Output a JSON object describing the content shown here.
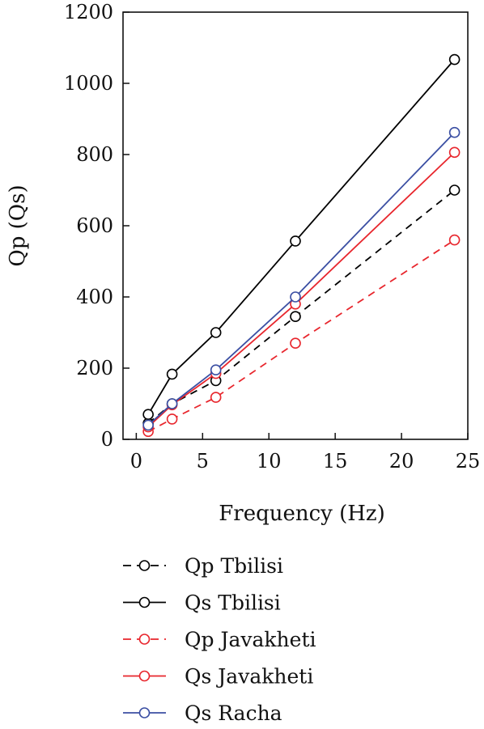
{
  "chart_data": {
    "type": "line",
    "xlabel": "Frequency (Hz)",
    "ylabel": "Qp (Qs)",
    "xlim": [
      -1,
      25
    ],
    "ylim": [
      0,
      1200
    ],
    "xticks": [
      0,
      5,
      10,
      15,
      20,
      25
    ],
    "yticks": [
      0,
      200,
      400,
      600,
      800,
      1000,
      1200
    ],
    "xtick_labels": [
      "0",
      "5",
      "10",
      "15",
      "20",
      "25"
    ],
    "ytick_labels": [
      "0",
      "200",
      "400",
      "600",
      "800",
      "1000",
      "1200"
    ],
    "grid": false,
    "legend_position": "bottom",
    "series": [
      {
        "name": "Qp Tbilisi",
        "color": "#000000",
        "dash": "dashed",
        "marker": "circle",
        "x": [
          0.9,
          2.7,
          6,
          12,
          24
        ],
        "y": [
          45,
          100,
          165,
          345,
          700
        ]
      },
      {
        "name": "Qs Tbilisi",
        "color": "#000000",
        "dash": "solid",
        "marker": "circle",
        "x": [
          0.9,
          2.7,
          6,
          12,
          24
        ],
        "y": [
          70,
          183,
          300,
          557,
          1067
        ]
      },
      {
        "name": "Qp Javakheti",
        "color": "#e8262d",
        "dash": "dashed",
        "marker": "circle",
        "x": [
          0.9,
          2.7,
          6,
          12,
          24
        ],
        "y": [
          22,
          57,
          118,
          270,
          560
        ]
      },
      {
        "name": "Qs Javakheti",
        "color": "#e8262d",
        "dash": "solid",
        "marker": "circle",
        "x": [
          0.9,
          2.7,
          6,
          12,
          24
        ],
        "y": [
          35,
          97,
          185,
          380,
          806
        ]
      },
      {
        "name": "Qs Racha",
        "color": "#3b4fa3",
        "dash": "solid",
        "marker": "circle",
        "x": [
          0.9,
          2.7,
          6,
          12,
          24
        ],
        "y": [
          40,
          100,
          195,
          400,
          862
        ]
      }
    ]
  }
}
